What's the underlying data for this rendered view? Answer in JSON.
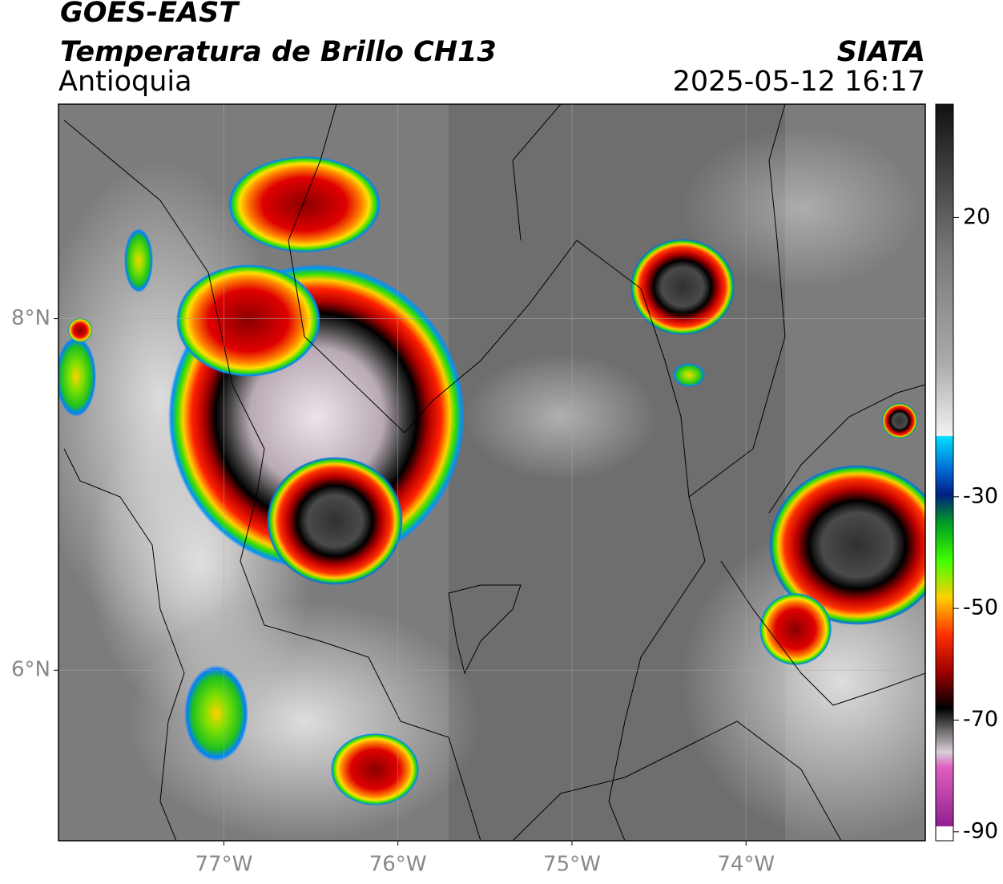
{
  "header": {
    "title": "GOES-EAST",
    "product": "Temperatura de Brillo CH13",
    "region": "Antioquia",
    "source": "SIATA",
    "datetime": "2025-05-12 16:17"
  },
  "map": {
    "xlim": [
      -77.95,
      -72.97
    ],
    "ylim": [
      5.03,
      9.22
    ],
    "xticks": [
      {
        "value": -77,
        "label": "77°W"
      },
      {
        "value": -76,
        "label": "76°W"
      },
      {
        "value": -75,
        "label": "75°W"
      },
      {
        "value": -74,
        "label": "74°W"
      }
    ],
    "yticks": [
      {
        "value": 6,
        "label": "6°N"
      },
      {
        "value": 8,
        "label": "8°N"
      }
    ],
    "grid": true
  },
  "colorbar": {
    "lim": [
      -91.6,
      40.3
    ],
    "ticks": [
      20,
      -30,
      -50,
      -70,
      -90
    ]
  }
}
